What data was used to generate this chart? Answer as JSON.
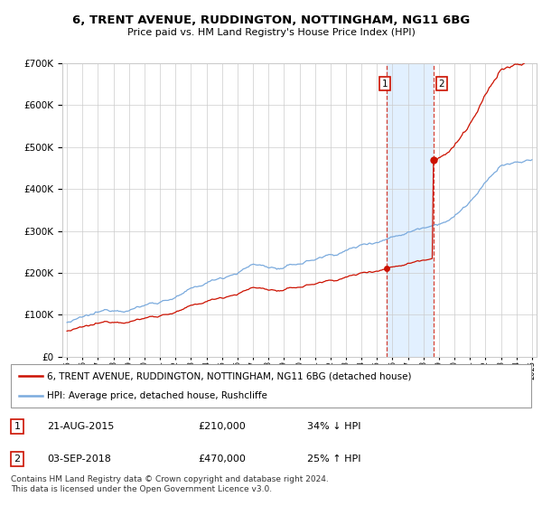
{
  "title": "6, TRENT AVENUE, RUDDINGTON, NOTTINGHAM, NG11 6BG",
  "subtitle": "Price paid vs. HM Land Registry's House Price Index (HPI)",
  "legend_line1": "6, TRENT AVENUE, RUDDINGTON, NOTTINGHAM, NG11 6BG (detached house)",
  "legend_line2": "HPI: Average price, detached house, Rushcliffe",
  "sale1_date": "21-AUG-2015",
  "sale1_price": 210000,
  "sale1_pct": "34% ↓ HPI",
  "sale2_date": "03-SEP-2018",
  "sale2_price": 470000,
  "sale2_pct": "25% ↑ HPI",
  "footer": "Contains HM Land Registry data © Crown copyright and database right 2024.\nThis data is licensed under the Open Government Licence v3.0.",
  "hpi_color": "#7aaadd",
  "sale_color": "#cc1100",
  "shading_color": "#ddeeff",
  "grid_color": "#cccccc",
  "ylim_max": 700000,
  "ylim_min": 0,
  "sale1_year": 2015.64,
  "sale2_year": 2018.67
}
